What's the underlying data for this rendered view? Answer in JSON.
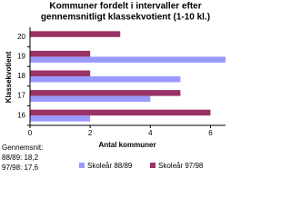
{
  "chart_data": {
    "type": "hbar",
    "title": "Kommuner fordelt i intervaller efter",
    "subtitle": "gennemsnitligt klassekvotient (1-10 kl.)",
    "y_label": "Klassekvotient",
    "x_label": "Antal kommuner",
    "categories": [
      "16",
      "17",
      "18",
      "19",
      "20"
    ],
    "series": [
      {
        "name": "Skoleår 88/89",
        "color": "#9999ff",
        "values": [
          2,
          4,
          5,
          6.5,
          0
        ]
      },
      {
        "name": "Skoleår 97/98",
        "color": "#993366",
        "values": [
          6,
          5,
          2,
          2,
          3
        ]
      }
    ],
    "xlim": [
      0,
      6.5
    ],
    "xticks": [
      0,
      2,
      4,
      6
    ],
    "annotations": [
      "Gennemsnit:",
      "88/89: 18,2",
      "97/98: 17,6"
    ],
    "legend": "bottom"
  }
}
